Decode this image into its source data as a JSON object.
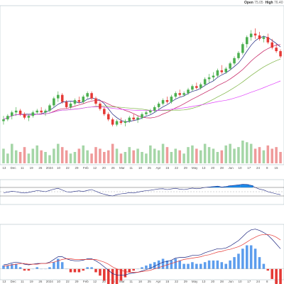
{
  "header": {
    "open_label": "Open",
    "open_value": "75.05",
    "high_label": "High",
    "high_value": "76.40"
  },
  "chart_data": [
    {
      "type": "candlestick",
      "panel": "price",
      "x_labels": [
        "13",
        "Dec",
        "11",
        "19",
        "26",
        "2024",
        "10",
        "22",
        "29",
        "Feb",
        "12",
        "20",
        "26",
        "Mar",
        "11",
        "18",
        "25",
        "Apr",
        "15",
        "22",
        "29",
        "May",
        "13",
        "20",
        "28",
        "Jun",
        "10",
        "17",
        "24",
        "8",
        "15"
      ],
      "candles_note": "approximate OHLC in relative price units read from the plot",
      "candles": [
        [
          30,
          33,
          28,
          31
        ],
        [
          31,
          34,
          30,
          33
        ],
        [
          33,
          36,
          31,
          35
        ],
        [
          35,
          38,
          33,
          36
        ],
        [
          36,
          37,
          33,
          34
        ],
        [
          34,
          35,
          31,
          32
        ],
        [
          32,
          34,
          30,
          33
        ],
        [
          33,
          36,
          32,
          35
        ],
        [
          35,
          37,
          34,
          36
        ],
        [
          36,
          38,
          34,
          35
        ],
        [
          35,
          37,
          33,
          36
        ],
        [
          36,
          40,
          35,
          39
        ],
        [
          39,
          44,
          38,
          43
        ],
        [
          43,
          47,
          41,
          45
        ],
        [
          45,
          46,
          40,
          41
        ],
        [
          41,
          42,
          37,
          38
        ],
        [
          38,
          41,
          37,
          40
        ],
        [
          40,
          43,
          39,
          42
        ],
        [
          42,
          44,
          40,
          41
        ],
        [
          41,
          45,
          40,
          44
        ],
        [
          44,
          47,
          43,
          46
        ],
        [
          46,
          47,
          42,
          43
        ],
        [
          43,
          44,
          39,
          40
        ],
        [
          40,
          41,
          36,
          37
        ],
        [
          37,
          38,
          33,
          34
        ],
        [
          34,
          35,
          30,
          31
        ],
        [
          31,
          32,
          27,
          28
        ],
        [
          28,
          31,
          27,
          30
        ],
        [
          30,
          32,
          28,
          29
        ],
        [
          29,
          31,
          27,
          30
        ],
        [
          30,
          33,
          29,
          32
        ],
        [
          32,
          34,
          30,
          31
        ],
        [
          31,
          33,
          29,
          32
        ],
        [
          32,
          35,
          31,
          34
        ],
        [
          34,
          36,
          33,
          35
        ],
        [
          35,
          37,
          34,
          36
        ],
        [
          36,
          39,
          35,
          38
        ],
        [
          38,
          41,
          37,
          40
        ],
        [
          40,
          43,
          39,
          42
        ],
        [
          42,
          44,
          40,
          41
        ],
        [
          41,
          45,
          40,
          44
        ],
        [
          44,
          47,
          43,
          46
        ],
        [
          46,
          48,
          44,
          45
        ],
        [
          45,
          47,
          44,
          46
        ],
        [
          46,
          49,
          45,
          48
        ],
        [
          48,
          51,
          47,
          50
        ],
        [
          50,
          52,
          48,
          49
        ],
        [
          49,
          52,
          48,
          51
        ],
        [
          51,
          55,
          50,
          54
        ],
        [
          54,
          57,
          52,
          55
        ],
        [
          55,
          58,
          53,
          56
        ],
        [
          56,
          60,
          55,
          59
        ],
        [
          59,
          62,
          57,
          58
        ],
        [
          58,
          61,
          57,
          60
        ],
        [
          60,
          64,
          59,
          63
        ],
        [
          63,
          67,
          62,
          66
        ],
        [
          66,
          70,
          65,
          69
        ],
        [
          69,
          75,
          68,
          74
        ],
        [
          74,
          79,
          72,
          78
        ],
        [
          78,
          82,
          76,
          80
        ],
        [
          80,
          83,
          77,
          79
        ],
        [
          79,
          81,
          76,
          77
        ],
        [
          77,
          79,
          75,
          78
        ],
        [
          78,
          80,
          74,
          75
        ],
        [
          75,
          77,
          71,
          72
        ],
        [
          72,
          74,
          69,
          70
        ],
        [
          70,
          71,
          66,
          67
        ]
      ],
      "overlays": [
        {
          "name": "MA short",
          "color": "#1a237e"
        },
        {
          "name": "MA medium",
          "color": "#c2185b"
        },
        {
          "name": "MA long",
          "color": "#7cb342"
        },
        {
          "name": "MA longest",
          "color": "#e040fb"
        }
      ],
      "volume": [
        9,
        6,
        12,
        8,
        7,
        10,
        6,
        9,
        11,
        8,
        7,
        5,
        9,
        12,
        10,
        8,
        6,
        7,
        9,
        11,
        8,
        6,
        10,
        9,
        7,
        8,
        12,
        9,
        6,
        7,
        10,
        8,
        9,
        7,
        6,
        11,
        9,
        8,
        12,
        10,
        7,
        9,
        8,
        6,
        10,
        11,
        9,
        8,
        12,
        10,
        9,
        7,
        8,
        11,
        12,
        9,
        10,
        14,
        13,
        12,
        9,
        10,
        8,
        11,
        9,
        10,
        7
      ],
      "colors": {
        "up": "#4caf50",
        "down": "#e53935",
        "up_vol": "#a5d6a7",
        "down_vol": "#ef9a9a"
      }
    },
    {
      "type": "line",
      "panel": "oscillator",
      "ylim": [
        0,
        100
      ],
      "upper": 70,
      "lower": 30,
      "values": [
        45,
        48,
        52,
        50,
        46,
        44,
        47,
        51,
        55,
        53,
        50,
        56,
        62,
        66,
        58,
        50,
        48,
        52,
        54,
        51,
        56,
        60,
        52,
        44,
        38,
        33,
        30,
        36,
        40,
        42,
        46,
        44,
        48,
        52,
        55,
        57,
        60,
        63,
        64,
        60,
        63,
        66,
        62,
        60,
        63,
        67,
        64,
        66,
        70,
        72,
        74,
        76,
        72,
        74,
        78,
        80,
        82,
        85,
        84,
        80,
        70,
        62,
        58,
        50,
        45,
        40,
        36
      ],
      "color": "#1a237e",
      "fill_over": "#1e88e5"
    },
    {
      "type": "line+histogram",
      "panel": "macd",
      "macd": [
        0.6,
        0.7,
        0.9,
        1.0,
        0.9,
        0.7,
        0.6,
        0.7,
        0.8,
        0.8,
        0.8,
        1.0,
        1.4,
        1.8,
        1.8,
        1.5,
        1.3,
        1.2,
        1.2,
        1.3,
        1.5,
        1.5,
        1.2,
        0.8,
        0.3,
        -0.2,
        -0.7,
        -0.9,
        -0.9,
        -0.9,
        -0.7,
        -0.6,
        -0.5,
        -0.3,
        -0.1,
        0.1,
        0.4,
        0.7,
        1.0,
        1.1,
        1.3,
        1.6,
        1.7,
        1.7,
        1.8,
        2.0,
        2.0,
        2.1,
        2.4,
        2.6,
        2.8,
        3.0,
        3.0,
        3.1,
        3.4,
        3.8,
        4.2,
        4.8,
        5.4,
        5.8,
        5.9,
        5.7,
        5.4,
        5.0,
        4.4,
        3.7,
        3.0
      ],
      "signal": [
        0.4,
        0.5,
        0.6,
        0.7,
        0.8,
        0.8,
        0.7,
        0.7,
        0.7,
        0.8,
        0.8,
        0.9,
        1.0,
        1.2,
        1.4,
        1.5,
        1.5,
        1.4,
        1.4,
        1.4,
        1.4,
        1.4,
        1.4,
        1.2,
        1.0,
        0.7,
        0.3,
        0.0,
        -0.2,
        -0.4,
        -0.5,
        -0.5,
        -0.5,
        -0.4,
        -0.3,
        -0.2,
        0.0,
        0.2,
        0.4,
        0.6,
        0.8,
        1.0,
        1.2,
        1.4,
        1.5,
        1.6,
        1.7,
        1.8,
        2.0,
        2.1,
        2.3,
        2.5,
        2.6,
        2.8,
        2.9,
        3.1,
        3.3,
        3.6,
        4.0,
        4.4,
        4.7,
        5.0,
        5.1,
        5.1,
        5.0,
        4.7,
        4.3
      ],
      "colors": {
        "macd": "#1a237e",
        "signal": "#e53935",
        "hist_pos": "#5c9ded",
        "hist_neg": "#e53935"
      }
    }
  ]
}
